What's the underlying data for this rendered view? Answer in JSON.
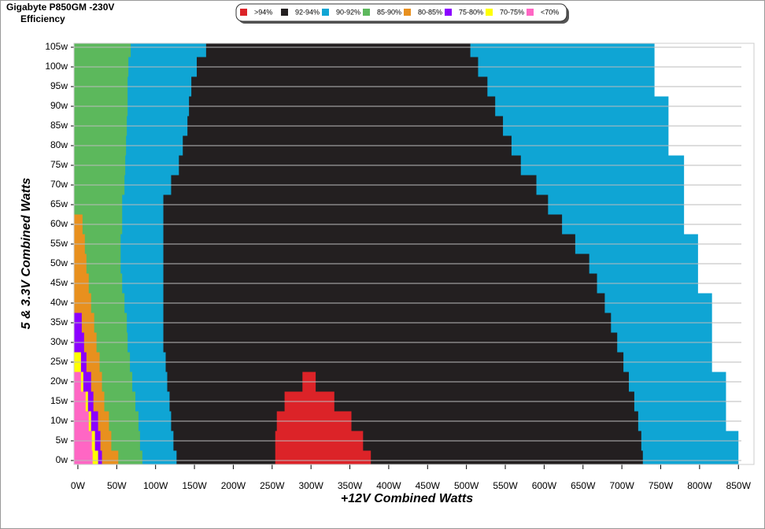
{
  "chart_data": {
    "type": "efficiency-map",
    "title": "Gigabyte P850GM -230V",
    "subtitle": "Efficiency",
    "x_label": "+12V Combined Watts",
    "y_label": "5 & 3.3V Combined Watts",
    "xlim": [
      -5,
      870
    ],
    "ylim": [
      -1,
      106
    ],
    "grid": true,
    "legend": "top",
    "xticks": [
      {
        "value": 0,
        "label": "0W"
      },
      {
        "value": 50,
        "label": "50W"
      },
      {
        "value": 100,
        "label": "100W"
      },
      {
        "value": 150,
        "label": "150W"
      },
      {
        "value": 200,
        "label": "200W"
      },
      {
        "value": 250,
        "label": "250W"
      },
      {
        "value": 300,
        "label": "300W"
      },
      {
        "value": 350,
        "label": "350W"
      },
      {
        "value": 400,
        "label": "400W"
      },
      {
        "value": 450,
        "label": "450W"
      },
      {
        "value": 500,
        "label": "500W"
      },
      {
        "value": 550,
        "label": "550W"
      },
      {
        "value": 600,
        "label": "600W"
      },
      {
        "value": 650,
        "label": "650W"
      },
      {
        "value": 700,
        "label": "700W"
      },
      {
        "value": 750,
        "label": "750W"
      },
      {
        "value": 800,
        "label": "800W"
      },
      {
        "value": 850,
        "label": "850W"
      }
    ],
    "yticks": [
      {
        "value": 0,
        "label": "0w"
      },
      {
        "value": 5,
        "label": "5w"
      },
      {
        "value": 10,
        "label": "10w"
      },
      {
        "value": 15,
        "label": "15w"
      },
      {
        "value": 20,
        "label": "20w"
      },
      {
        "value": 25,
        "label": "25w"
      },
      {
        "value": 30,
        "label": "30w"
      },
      {
        "value": 35,
        "label": "35w"
      },
      {
        "value": 40,
        "label": "40w"
      },
      {
        "value": 45,
        "label": "45w"
      },
      {
        "value": 50,
        "label": "50w"
      },
      {
        "value": 55,
        "label": "55w"
      },
      {
        "value": 60,
        "label": "60w"
      },
      {
        "value": 65,
        "label": "65w"
      },
      {
        "value": 70,
        "label": "70w"
      },
      {
        "value": 75,
        "label": "75w"
      },
      {
        "value": 80,
        "label": "80w"
      },
      {
        "value": 85,
        "label": "85w"
      },
      {
        "value": 90,
        "label": "90w"
      },
      {
        "value": 95,
        "label": "95w"
      },
      {
        "value": 100,
        "label": "100w"
      },
      {
        "value": 105,
        "label": "105w"
      }
    ],
    "y": [
      0,
      5,
      10,
      15,
      20,
      25,
      30,
      35,
      40,
      45,
      50,
      55,
      60,
      65,
      70,
      75,
      80,
      85,
      90,
      95,
      100,
      105
    ],
    "series": [
      {
        "name": ">94%",
        "color": "#dc2328",
        "start": [
          254,
          254,
          256,
          266,
          289,
          null,
          null,
          null,
          null,
          null,
          null,
          null,
          null,
          null,
          null,
          null,
          null,
          null,
          null,
          null,
          null,
          null
        ],
        "end": [
          377,
          367,
          352,
          330,
          306,
          null,
          null,
          null,
          null,
          null,
          null,
          null,
          null,
          null,
          null,
          null,
          null,
          null,
          null,
          null,
          null,
          null
        ]
      },
      {
        "name": "92-94%",
        "color": "#231f20",
        "start": [
          127,
          123,
          120,
          118,
          115,
          113,
          110,
          110,
          110,
          110,
          110,
          110,
          110,
          110,
          120,
          130,
          135,
          141,
          143,
          146,
          153,
          165
        ],
        "end": [
          727,
          725,
          721,
          716,
          709,
          702,
          694,
          686,
          678,
          668,
          658,
          640,
          623,
          605,
          590,
          570,
          558,
          547,
          537,
          527,
          515,
          505
        ]
      },
      {
        "name": "90-92%",
        "color": "#0fa5d4",
        "values": [
          850,
          850,
          834,
          834,
          834,
          816,
          816,
          816,
          816,
          798,
          798,
          798,
          780,
          780,
          780,
          780,
          760,
          760,
          760,
          742,
          742,
          742
        ]
      },
      {
        "name": "85-90%",
        "color": "#5cb85c",
        "values": [
          83,
          80,
          78,
          74,
          70,
          67,
          64,
          63,
          60,
          57,
          55,
          55,
          57,
          57,
          60,
          61,
          62,
          63,
          64,
          64,
          65,
          68
        ]
      },
      {
        "name": "80-85%",
        "color": "#e8901e",
        "values": [
          52,
          43,
          40,
          34,
          31,
          28,
          24,
          21,
          17,
          14,
          11,
          9,
          6,
          null,
          null,
          null,
          null,
          null,
          null,
          null,
          null,
          null
        ]
      },
      {
        "name": "75-80%",
        "color": "#8b00ff",
        "values": [
          31,
          29,
          26,
          20,
          17,
          11,
          8,
          5,
          null,
          null,
          null,
          null,
          null,
          null,
          null,
          null,
          null,
          null,
          null,
          null,
          null,
          null
        ]
      },
      {
        "name": "70-75%",
        "color": "#ffff00",
        "values": [
          26,
          22,
          17,
          13,
          7,
          4,
          null,
          null,
          null,
          null,
          null,
          null,
          null,
          null,
          null,
          null,
          null,
          null,
          null,
          null,
          null,
          null
        ]
      },
      {
        "name": "<70%",
        "color": "#ff66c4",
        "values": [
          19,
          18,
          14,
          10,
          4,
          null,
          null,
          null,
          null,
          null,
          null,
          null,
          null,
          null,
          null,
          null,
          null,
          null,
          null,
          null,
          null,
          null
        ]
      }
    ]
  }
}
